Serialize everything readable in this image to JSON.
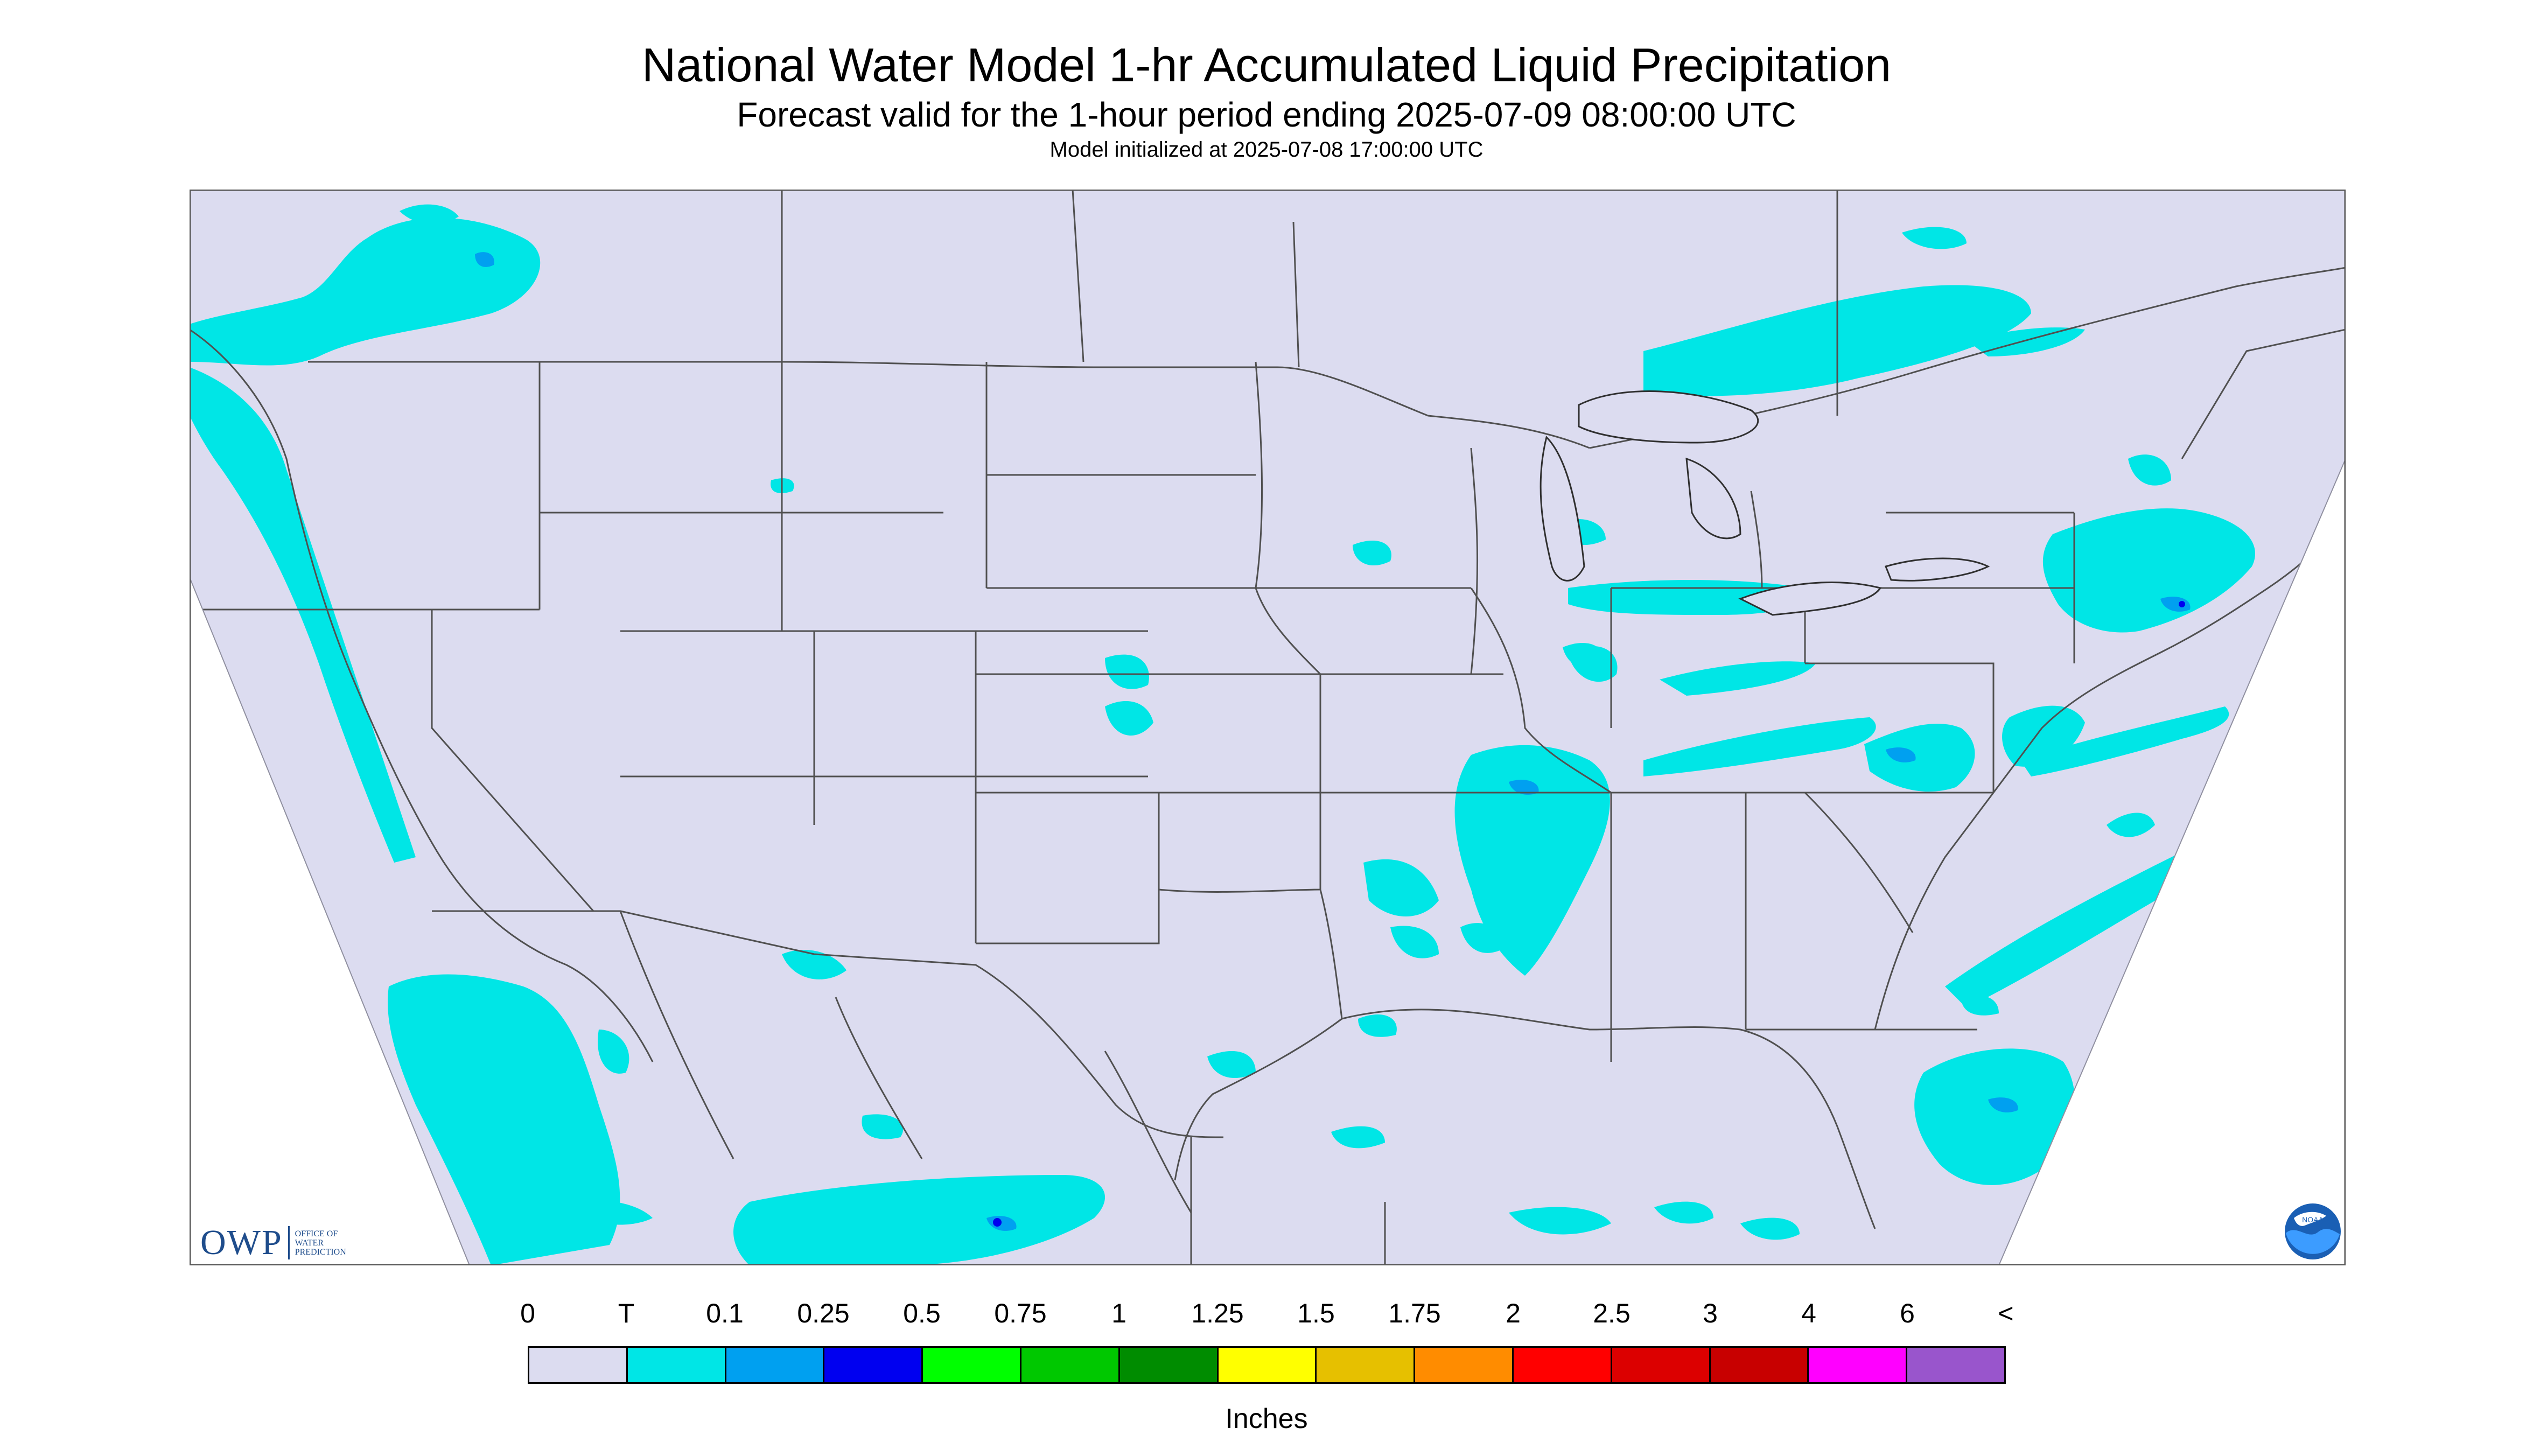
{
  "header": {
    "title": "National Water Model 1-hr Accumulated Liquid Precipitation",
    "subtitle": "Forecast valid for the 1-hour period ending 2025-07-09 08:00:00 UTC",
    "init_line": "Model initialized at 2025-07-08 17:00:00 UTC"
  },
  "legend": {
    "units": "Inches",
    "ticks": [
      "0",
      "T",
      "0.1",
      "0.25",
      "0.5",
      "0.75",
      "1",
      "1.25",
      "1.5",
      "1.75",
      "2",
      "2.5",
      "3",
      "4",
      "6",
      "<"
    ],
    "colors": [
      "#dcdcf0",
      "#00e6e6",
      "#00a0f0",
      "#0000f0",
      "#00ff00",
      "#00c800",
      "#008c00",
      "#ffff00",
      "#e6c000",
      "#ff8c00",
      "#ff0000",
      "#dc0000",
      "#c80000",
      "#ff00ff",
      "#9955cc"
    ]
  },
  "map_colors": {
    "background": "#dcdcf0",
    "trace": "#00e6e6",
    "light": "#00a0f0",
    "moderate": "#0000f0",
    "boundary": "#505050"
  },
  "logos": {
    "owp_mark": "OWP",
    "owp_text": [
      "OFFICE OF",
      "WATER",
      "PREDICTION"
    ],
    "noaa_text": "NOAA",
    "noaa_icon": "noaa-logo-icon"
  }
}
